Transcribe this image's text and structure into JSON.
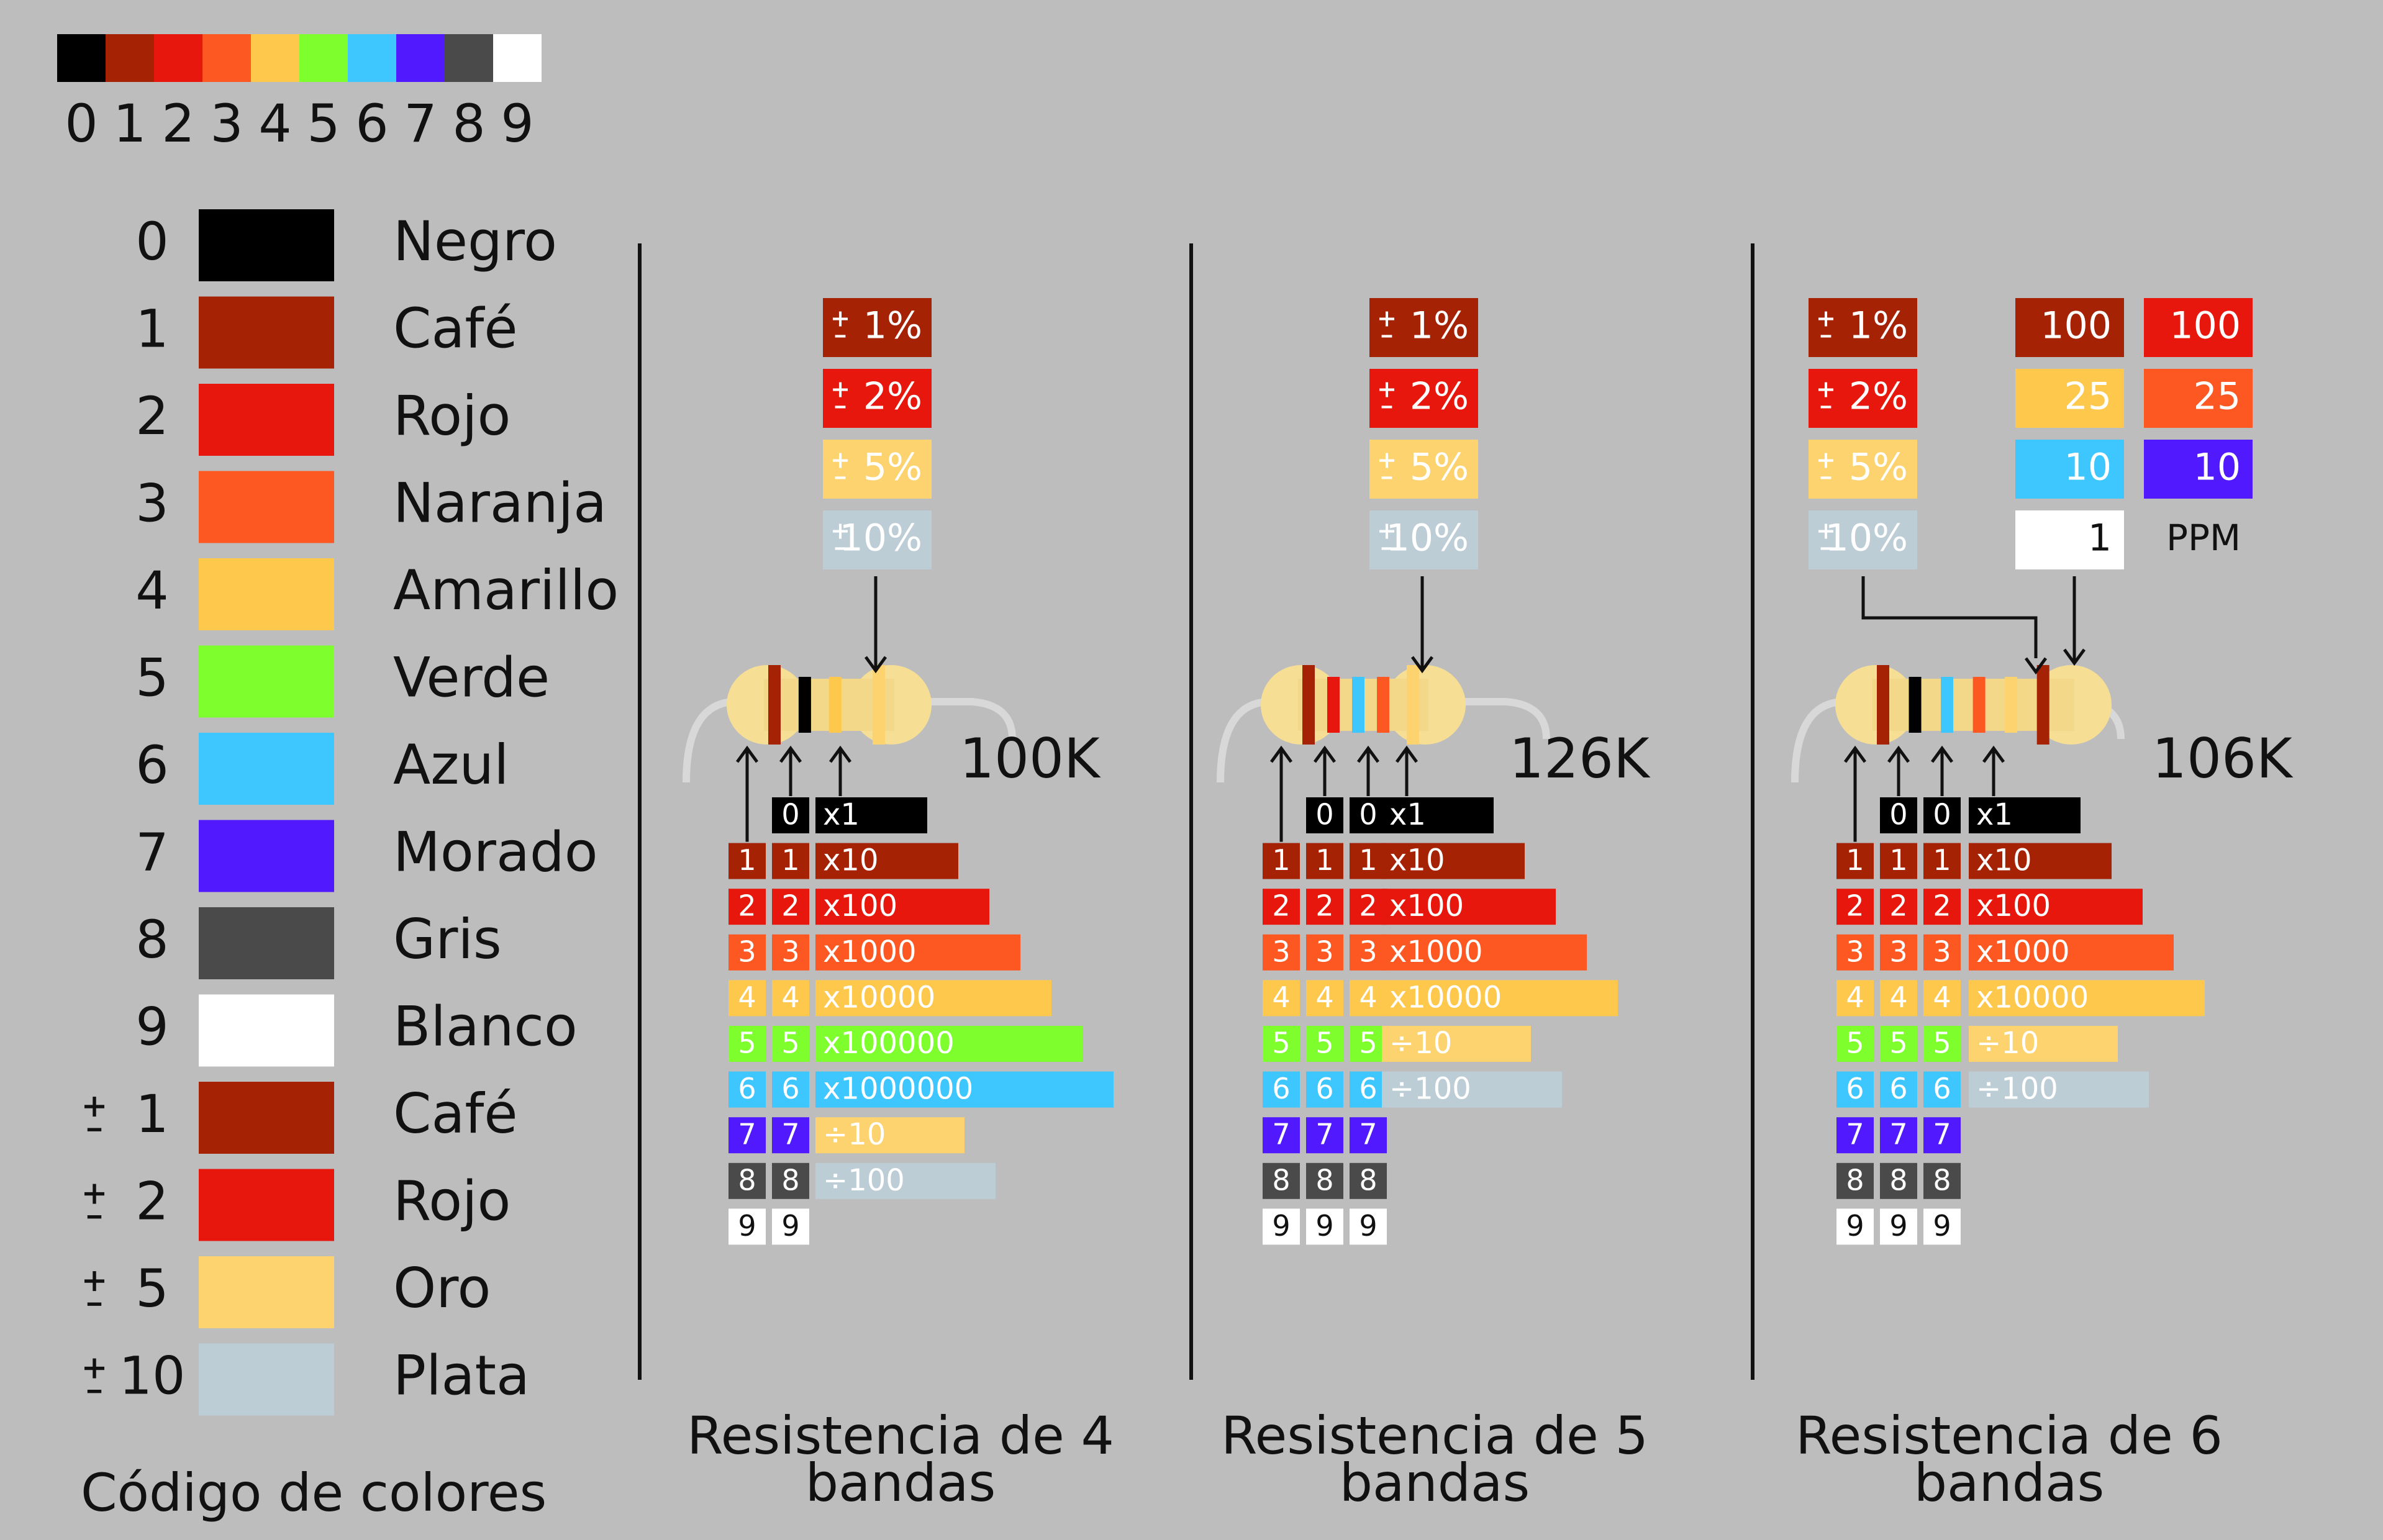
{
  "colors": {
    "c0": "#000000",
    "c1": "#a52205",
    "c2": "#e8170d",
    "c3": "#fe5822",
    "c4": "#fec84d",
    "c5": "#7ffe2e",
    "c6": "#3ec6fe",
    "c7": "#5119fe",
    "c8": "#4a4a4a",
    "c9": "#ffffff",
    "gold": "#fdd36f",
    "silver": "#bdcdd6",
    "background": "#bdbdbd",
    "ink": "#111111"
  },
  "strip": {
    "digits": [
      "0",
      "1",
      "2",
      "3",
      "4",
      "5",
      "6",
      "7",
      "8",
      "9"
    ]
  },
  "legend": {
    "title": "Código de colores",
    "rows": [
      {
        "tol": false,
        "num": "0",
        "name": "Negro",
        "color": "c0"
      },
      {
        "tol": false,
        "num": "1",
        "name": "Café",
        "color": "c1"
      },
      {
        "tol": false,
        "num": "2",
        "name": "Rojo",
        "color": "c2"
      },
      {
        "tol": false,
        "num": "3",
        "name": "Naranja",
        "color": "c3"
      },
      {
        "tol": false,
        "num": "4",
        "name": "Amarillo",
        "color": "c4"
      },
      {
        "tol": false,
        "num": "5",
        "name": "Verde",
        "color": "c5"
      },
      {
        "tol": false,
        "num": "6",
        "name": "Azul",
        "color": "c6"
      },
      {
        "tol": false,
        "num": "7",
        "name": "Morado",
        "color": "c7"
      },
      {
        "tol": false,
        "num": "8",
        "name": "Gris",
        "color": "c8"
      },
      {
        "tol": false,
        "num": "9",
        "name": "Blanco",
        "color": "c9"
      },
      {
        "tol": true,
        "num": "1",
        "name": "Café",
        "color": "c1"
      },
      {
        "tol": true,
        "num": "2",
        "name": "Rojo",
        "color": "c2"
      },
      {
        "tol": true,
        "num": "5",
        "name": "Oro",
        "color": "gold"
      },
      {
        "tol": true,
        "num": "10",
        "name": "Plata",
        "color": "silver"
      }
    ]
  },
  "tolerances": [
    {
      "label": "1%",
      "color": "c1",
      "light": false
    },
    {
      "label": "2%",
      "color": "c2",
      "light": false
    },
    {
      "label": "5%",
      "color": "gold",
      "light": true
    },
    {
      "label": "10%",
      "color": "silver",
      "light": true
    }
  ],
  "multipliers": {
    "four_band": [
      {
        "label": "x1",
        "color": "c0",
        "light": false
      },
      {
        "label": "x10",
        "color": "c1",
        "light": false
      },
      {
        "label": "x100",
        "color": "c2",
        "light": false
      },
      {
        "label": "x1000",
        "color": "c3",
        "light": false
      },
      {
        "label": "x10000",
        "color": "c4",
        "light": true
      },
      {
        "label": "x100000",
        "color": "c5",
        "light": true
      },
      {
        "label": "x1000000",
        "color": "c6",
        "light": true
      },
      {
        "label": "÷10",
        "color": "gold",
        "light": true
      },
      {
        "label": "÷100",
        "color": "silver",
        "light": true
      }
    ],
    "five_six_band": [
      {
        "label": "x1",
        "color": "c0",
        "light": false
      },
      {
        "label": "x10",
        "color": "c1",
        "light": false
      },
      {
        "label": "x100",
        "color": "c2",
        "light": false
      },
      {
        "label": "x1000",
        "color": "c3",
        "light": false
      },
      {
        "label": "x10000",
        "color": "c4",
        "light": true
      },
      {
        "label": "÷10",
        "color": "gold",
        "light": true
      },
      {
        "label": "÷100",
        "color": "silver",
        "light": true
      }
    ]
  },
  "panels": [
    {
      "caption": [
        "Resistencia de 4",
        "bandas"
      ],
      "value": "100K",
      "digit_columns": 2,
      "bands": [
        "c1",
        "c0",
        "c4",
        "gold"
      ],
      "multiplier_set": "four_band"
    },
    {
      "caption": [
        "Resistencia de 5",
        "bandas"
      ],
      "value": "126K",
      "digit_columns": 3,
      "bands": [
        "c1",
        "c2",
        "c6",
        "c3",
        "gold"
      ],
      "multiplier_set": "five_six_band"
    },
    {
      "caption": [
        "Resistencia de 6",
        "bandas"
      ],
      "value": "106K",
      "digit_columns": 3,
      "bands": [
        "c1",
        "c0",
        "c6",
        "c3",
        "gold",
        "c1"
      ],
      "multiplier_set": "five_six_band"
    }
  ],
  "ppm": {
    "label": "PPM",
    "left": [
      {
        "value": "100",
        "color": "c1",
        "light": false
      },
      {
        "value": "25",
        "color": "c4",
        "light": true
      },
      {
        "value": "10",
        "color": "c6",
        "light": true
      },
      {
        "value": "1",
        "color": "c9",
        "light": false
      }
    ],
    "right": [
      {
        "value": "100",
        "color": "c2",
        "light": false
      },
      {
        "value": "25",
        "color": "c3",
        "light": false
      },
      {
        "value": "10",
        "color": "c7",
        "light": false
      }
    ]
  }
}
